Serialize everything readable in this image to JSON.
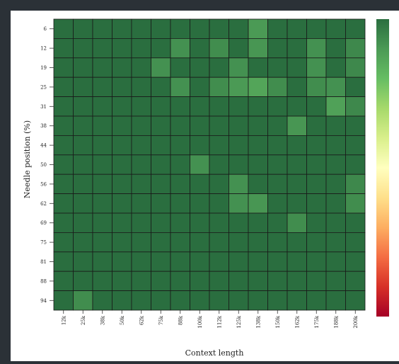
{
  "chart_data": {
    "type": "heatmap",
    "title": "",
    "xlabel": "Context length",
    "ylabel": "Needle position (%)",
    "x_categories": [
      "12k",
      "25k",
      "38k",
      "50k",
      "62k",
      "75k",
      "88k",
      "100k",
      "112k",
      "125k",
      "138k",
      "150k",
      "162k",
      "175k",
      "188k",
      "200k"
    ],
    "y_categories": [
      "6",
      "12",
      "19",
      "25",
      "31",
      "38",
      "44",
      "50",
      "56",
      "62",
      "69",
      "75",
      "81",
      "88",
      "94"
    ],
    "values": [
      [
        1.0,
        1.0,
        1.0,
        1.0,
        1.0,
        1.0,
        1.0,
        1.0,
        1.0,
        1.0,
        0.9,
        1.0,
        1.0,
        1.0,
        1.0,
        1.0
      ],
      [
        1.0,
        1.0,
        1.0,
        1.0,
        1.0,
        1.0,
        0.92,
        1.0,
        0.93,
        1.0,
        0.91,
        1.0,
        1.0,
        0.92,
        1.0,
        0.94
      ],
      [
        1.0,
        1.0,
        1.0,
        1.0,
        1.0,
        0.92,
        1.0,
        1.0,
        1.0,
        0.92,
        1.0,
        1.0,
        1.0,
        0.92,
        1.0,
        0.94
      ],
      [
        1.0,
        1.0,
        1.0,
        1.0,
        1.0,
        1.0,
        0.92,
        1.0,
        0.93,
        0.9,
        0.87,
        0.93,
        1.0,
        0.93,
        0.92,
        1.0
      ],
      [
        1.0,
        1.0,
        1.0,
        1.0,
        1.0,
        1.0,
        1.0,
        1.0,
        1.0,
        1.0,
        1.0,
        1.0,
        1.0,
        1.0,
        0.88,
        0.94
      ],
      [
        1.0,
        1.0,
        1.0,
        1.0,
        1.0,
        1.0,
        1.0,
        1.0,
        1.0,
        1.0,
        1.0,
        1.0,
        0.91,
        1.0,
        1.0,
        1.0
      ],
      [
        1.0,
        1.0,
        1.0,
        1.0,
        1.0,
        1.0,
        1.0,
        1.0,
        1.0,
        1.0,
        1.0,
        1.0,
        1.0,
        1.0,
        1.0,
        1.0
      ],
      [
        1.0,
        1.0,
        1.0,
        1.0,
        1.0,
        1.0,
        1.0,
        0.92,
        1.0,
        1.0,
        1.0,
        1.0,
        1.0,
        1.0,
        1.0,
        1.0
      ],
      [
        1.0,
        1.0,
        1.0,
        1.0,
        1.0,
        1.0,
        1.0,
        1.0,
        1.0,
        0.92,
        1.0,
        1.0,
        1.0,
        1.0,
        1.0,
        0.94
      ],
      [
        1.0,
        1.0,
        1.0,
        1.0,
        1.0,
        1.0,
        1.0,
        1.0,
        1.0,
        0.92,
        0.91,
        1.0,
        1.0,
        1.0,
        1.0,
        0.93
      ],
      [
        1.0,
        1.0,
        1.0,
        1.0,
        1.0,
        1.0,
        1.0,
        1.0,
        1.0,
        1.0,
        1.0,
        1.0,
        0.93,
        1.0,
        1.0,
        1.0
      ],
      [
        1.0,
        1.0,
        1.0,
        1.0,
        1.0,
        1.0,
        1.0,
        1.0,
        1.0,
        1.0,
        1.0,
        1.0,
        1.0,
        1.0,
        1.0,
        1.0
      ],
      [
        1.0,
        1.0,
        1.0,
        1.0,
        1.0,
        1.0,
        1.0,
        1.0,
        1.0,
        1.0,
        1.0,
        1.0,
        1.0,
        1.0,
        1.0,
        1.0
      ],
      [
        1.0,
        1.0,
        1.0,
        1.0,
        1.0,
        1.0,
        1.0,
        1.0,
        1.0,
        1.0,
        1.0,
        1.0,
        1.0,
        1.0,
        1.0,
        1.0
      ],
      [
        1.0,
        0.93,
        1.0,
        1.0,
        1.0,
        1.0,
        1.0,
        1.0,
        1.0,
        1.0,
        1.0,
        1.0,
        1.0,
        1.0,
        1.0,
        1.0
      ]
    ],
    "vmin": 0,
    "vmax": 1,
    "colormap": "RdYlGn",
    "colorbar": true,
    "grid": true,
    "legend": "none"
  }
}
